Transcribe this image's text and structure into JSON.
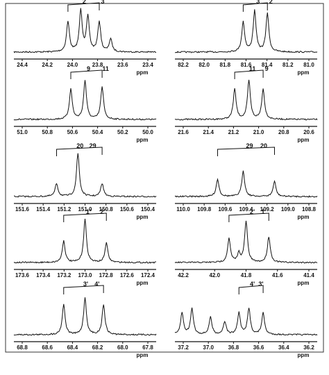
{
  "panels": [
    {
      "ticks": [
        "24.4",
        "24.2",
        "24.0",
        "23.8",
        "23.6",
        "23.4"
      ],
      "unit": "ppm",
      "labels": [
        "2",
        "3"
      ]
    },
    {
      "ticks": [
        "82.2",
        "82.0",
        "81.8",
        "81.6",
        "81.4",
        "81.2",
        "81.0"
      ],
      "unit": "ppm",
      "labels": [
        "3",
        "2"
      ]
    },
    {
      "ticks": [
        "51.0",
        "50.8",
        "50.6",
        "50.4",
        "50.2",
        "50.0"
      ],
      "unit": "ppm",
      "labels": [
        "9",
        "11"
      ]
    },
    {
      "ticks": [
        "21.6",
        "21.4",
        "21.2",
        "21.0",
        "20.8",
        "20.6"
      ],
      "unit": "ppm",
      "labels": [
        "11",
        "9"
      ]
    },
    {
      "ticks": [
        "151.6",
        "151.4",
        "151.2",
        "151.0",
        "150.8",
        "150.6",
        "150.4"
      ],
      "unit": "ppm",
      "labels": [
        "20",
        "29"
      ]
    },
    {
      "ticks": [
        "110.0",
        "109.8",
        "109.6",
        "109.4",
        "109.2",
        "109.0",
        "108.8"
      ],
      "unit": "ppm",
      "labels": [
        "29",
        "20"
      ]
    },
    {
      "ticks": [
        "173.6",
        "173.4",
        "173.2",
        "173.0",
        "172.8",
        "172.6",
        "172.4"
      ],
      "unit": "ppm",
      "labels": [
        "1'",
        "2'"
      ]
    },
    {
      "ticks": [
        "42.2",
        "42.0",
        "41.8",
        "41.6",
        "41.4"
      ],
      "unit": "ppm",
      "labels": [
        "2'",
        "1'"
      ]
    },
    {
      "ticks": [
        "68.8",
        "68.6",
        "68.4",
        "68.2",
        "68.0",
        "67.8"
      ],
      "unit": "ppm",
      "labels": [
        "3'",
        "4'"
      ]
    },
    {
      "ticks": [
        "37.2",
        "37.0",
        "36.8",
        "36.6",
        "36.4",
        "36.2"
      ],
      "unit": "ppm",
      "labels": [
        "4'",
        "3'"
      ]
    }
  ]
}
